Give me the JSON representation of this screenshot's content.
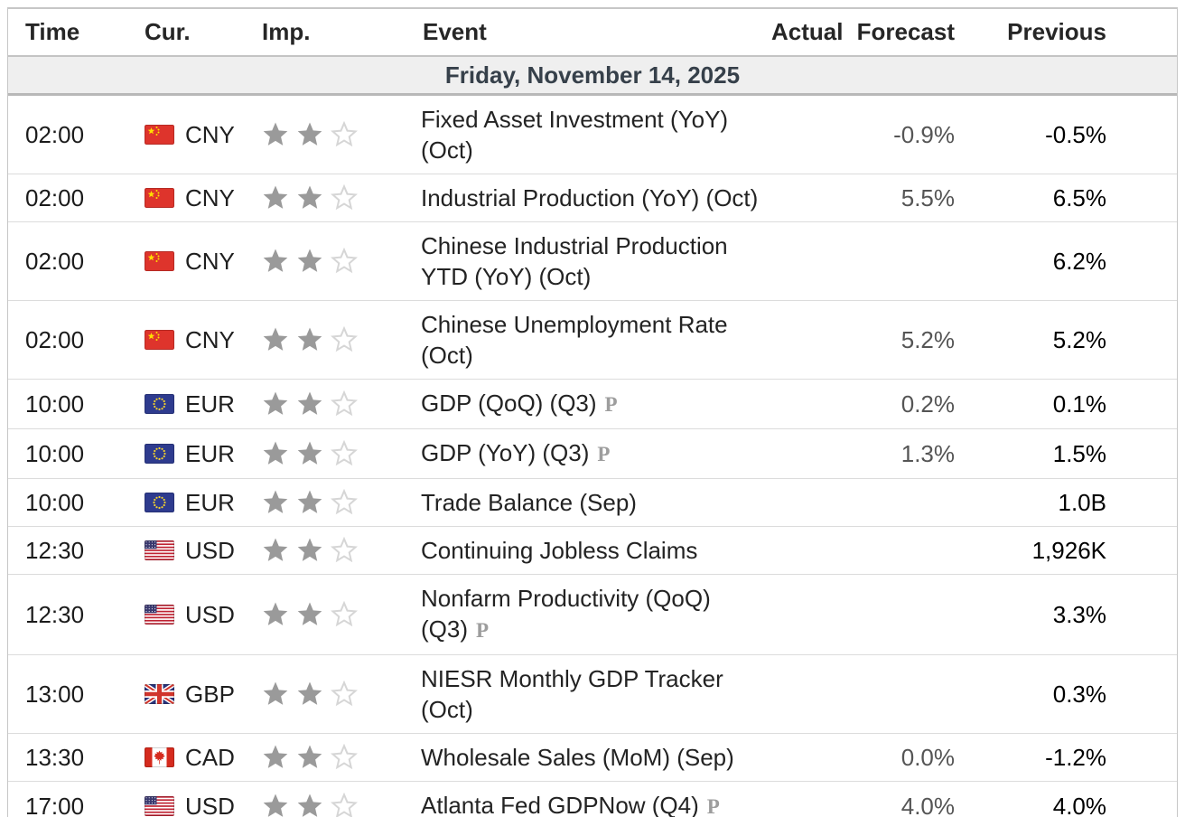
{
  "header": {
    "columns": {
      "time": "Time",
      "currency": "Cur.",
      "importance": "Imp.",
      "event": "Event",
      "actual": "Actual",
      "forecast": "Forecast",
      "previous": "Previous"
    }
  },
  "date_header": "Friday, November 14, 2025",
  "icons": {
    "preliminary_marker": "P"
  },
  "importance_max": 3,
  "events": [
    {
      "time": "02:00",
      "currency": "CNY",
      "flag": "cn",
      "importance": 2,
      "event": "Fixed Asset Investment (YoY) (Oct)",
      "preliminary": false,
      "actual": "",
      "forecast": "-0.9%",
      "previous": "-0.5%"
    },
    {
      "time": "02:00",
      "currency": "CNY",
      "flag": "cn",
      "importance": 2,
      "event": "Industrial Production (YoY) (Oct)",
      "preliminary": false,
      "actual": "",
      "forecast": "5.5%",
      "previous": "6.5%"
    },
    {
      "time": "02:00",
      "currency": "CNY",
      "flag": "cn",
      "importance": 2,
      "event": "Chinese Industrial Production YTD (YoY) (Oct)",
      "preliminary": false,
      "actual": "",
      "forecast": "",
      "previous": "6.2%"
    },
    {
      "time": "02:00",
      "currency": "CNY",
      "flag": "cn",
      "importance": 2,
      "event": "Chinese Unemployment Rate (Oct)",
      "preliminary": false,
      "actual": "",
      "forecast": "5.2%",
      "previous": "5.2%"
    },
    {
      "time": "10:00",
      "currency": "EUR",
      "flag": "eu",
      "importance": 2,
      "event": "GDP (QoQ) (Q3)",
      "preliminary": true,
      "actual": "",
      "forecast": "0.2%",
      "previous": "0.1%"
    },
    {
      "time": "10:00",
      "currency": "EUR",
      "flag": "eu",
      "importance": 2,
      "event": "GDP (YoY) (Q3)",
      "preliminary": true,
      "actual": "",
      "forecast": "1.3%",
      "previous": "1.5%"
    },
    {
      "time": "10:00",
      "currency": "EUR",
      "flag": "eu",
      "importance": 2,
      "event": "Trade Balance (Sep)",
      "preliminary": false,
      "actual": "",
      "forecast": "",
      "previous": "1.0B"
    },
    {
      "time": "12:30",
      "currency": "USD",
      "flag": "us",
      "importance": 2,
      "event": "Continuing Jobless Claims",
      "preliminary": false,
      "actual": "",
      "forecast": "",
      "previous": "1,926K"
    },
    {
      "time": "12:30",
      "currency": "USD",
      "flag": "us",
      "importance": 2,
      "event": "Nonfarm Productivity (QoQ) (Q3)",
      "preliminary": true,
      "actual": "",
      "forecast": "",
      "previous": "3.3%"
    },
    {
      "time": "13:00",
      "currency": "GBP",
      "flag": "gb",
      "importance": 2,
      "event": "NIESR Monthly GDP Tracker (Oct)",
      "preliminary": false,
      "actual": "",
      "forecast": "",
      "previous": "0.3%"
    },
    {
      "time": "13:30",
      "currency": "CAD",
      "flag": "ca",
      "importance": 2,
      "event": "Wholesale Sales (MoM) (Sep)",
      "preliminary": false,
      "actual": "",
      "forecast": "0.0%",
      "previous": "-1.2%"
    },
    {
      "time": "17:00",
      "currency": "USD",
      "flag": "us",
      "importance": 2,
      "event": "Atlanta Fed GDPNow (Q4)",
      "preliminary": true,
      "actual": "",
      "forecast": "4.0%",
      "previous": "4.0%"
    }
  ],
  "colors": {
    "star_filled": "#9a9a9a",
    "star_empty": "#d6d6d6",
    "date_band_bg": "#efefef",
    "date_text": "#36404a",
    "row_divider": "#dcdcdc",
    "cn_red": "#de342c",
    "cn_yellow": "#ffde00",
    "eu_blue": "#2e3b8e",
    "eu_yellow": "#f3d02f",
    "us_red": "#bf2333",
    "us_navy": "#39386e",
    "gb_navy": "#29337a",
    "gb_red": "#d0342c",
    "ca_red": "#d52b1e"
  }
}
